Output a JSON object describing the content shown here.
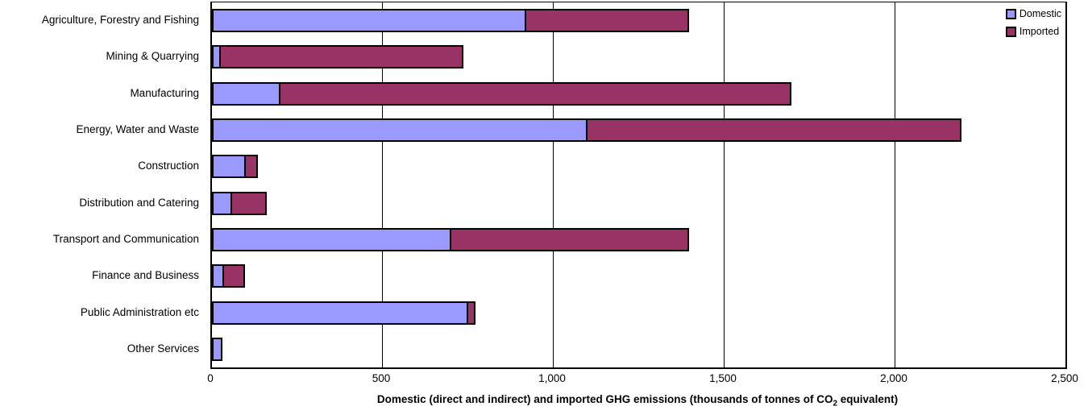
{
  "chart_data": {
    "type": "bar",
    "orientation": "horizontal",
    "stacked": true,
    "title": "",
    "xlabel": "Domestic (direct and indirect) and imported GHG emissions (thousands of tonnes of CO2 equivalent)",
    "xlabel_pre": "Domestic (direct and indirect) and imported GHG emissions  (thousands of tonnes of CO",
    "xlabel_sub": "2",
    "xlabel_post": " equivalent)",
    "categories": [
      "Agriculture, Forestry and Fishing",
      "Mining & Quarrying",
      "Manufacturing",
      "Energy, Water and Waste",
      "Construction",
      "Distribution and Catering",
      "Transport and Communication",
      "Finance and Business",
      "Public Administration etc",
      "Other Services"
    ],
    "series": [
      {
        "name": "Domestic",
        "color": "#9999FF",
        "values": [
          920,
          25,
          200,
          1100,
          100,
          60,
          700,
          35,
          750,
          30
        ]
      },
      {
        "name": "Imported",
        "color": "#993366",
        "values": [
          480,
          715,
          1500,
          1100,
          40,
          105,
          700,
          65,
          25,
          0
        ]
      }
    ],
    "xlim": [
      0,
      2500
    ],
    "xticks": [
      0,
      500,
      1000,
      1500,
      2000,
      2500
    ],
    "xtick_labels": [
      "0",
      "500",
      "1,000",
      "1,500",
      "2,000",
      "2,500"
    ],
    "grid": "vertical",
    "gridline_color": "#000000",
    "bar_border_color": "#000000",
    "legend_position": "top-right",
    "legend_entries": [
      "Domestic",
      "Imported"
    ]
  }
}
